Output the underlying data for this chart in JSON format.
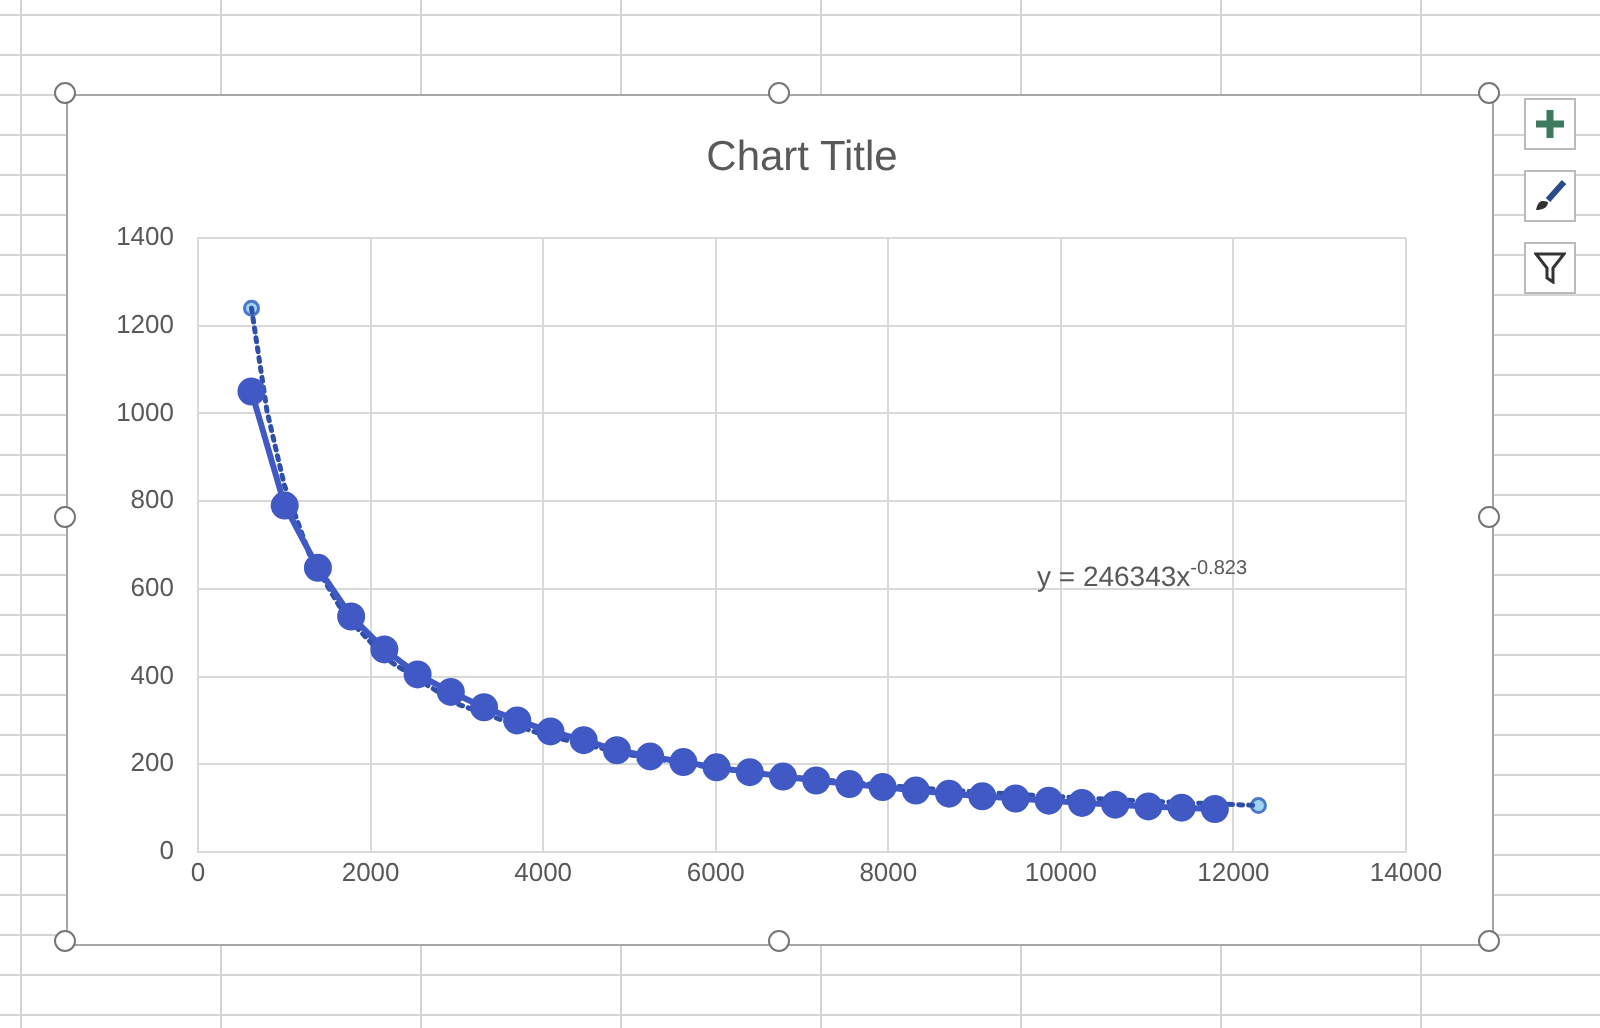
{
  "chart_data": {
    "type": "scatter",
    "title": "Chart Title",
    "xlim": [
      0,
      14000
    ],
    "xticks": [
      0,
      2000,
      4000,
      6000,
      8000,
      10000,
      12000,
      14000
    ],
    "ylim": [
      0,
      1400
    ],
    "yticks": [
      0,
      200,
      400,
      600,
      800,
      1000,
      1200,
      1400
    ],
    "grid": true,
    "legend": false,
    "series": [
      {
        "type": "line",
        "color": "#4159c4",
        "marker": "circle",
        "line_style": "solid",
        "x": [
          620,
          1005,
          1390,
          1775,
          2160,
          2545,
          2930,
          3315,
          3700,
          4085,
          4470,
          4855,
          5240,
          5625,
          6010,
          6395,
          6780,
          7165,
          7550,
          7935,
          8320,
          8705,
          9090,
          9475,
          9860,
          10245,
          10630,
          11015,
          11400,
          11785
        ],
        "values": [
          1050,
          790,
          648,
          537,
          462,
          405,
          365,
          330,
          300,
          275,
          255,
          232,
          218,
          205,
          193,
          182,
          172,
          163,
          155,
          148,
          140,
          133,
          127,
          122,
          117,
          112,
          108,
          104,
          101,
          98
        ]
      },
      {
        "type": "line",
        "color": "#2f4fa8",
        "marker": "none",
        "line_style": "dotted",
        "x": [
          620,
          800,
          1000,
          1300,
          1700,
          2200,
          3000,
          4000,
          5000,
          6000,
          7000,
          8000,
          9000,
          10000,
          11000,
          12290
        ],
        "values": [
          1240,
          1005,
          837,
          674,
          540,
          438,
          338,
          267,
          222,
          191,
          169,
          151,
          137,
          126,
          116,
          106
        ]
      },
      {
        "type": "scatter",
        "color": "#9dd3f0",
        "marker": "circle",
        "x": [
          620,
          12290
        ],
        "values": [
          1240,
          106
        ]
      }
    ],
    "annotations": [
      "y = 246343x$^{-0.823}$"
    ]
  }
}
